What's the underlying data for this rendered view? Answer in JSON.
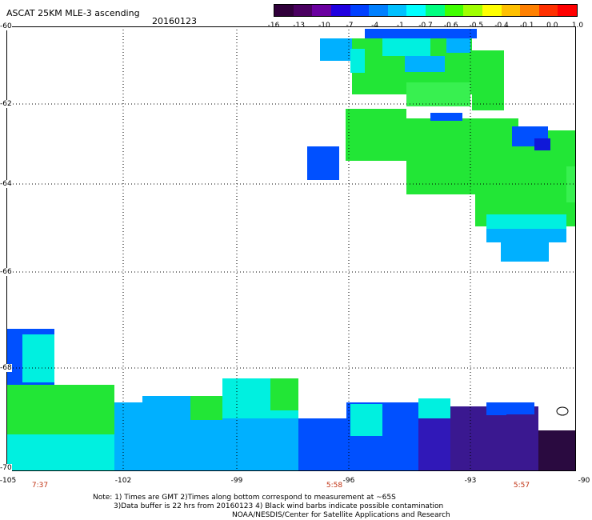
{
  "header": {
    "title": "ASCAT 25KM MLE-3 ascending",
    "date": "20160123"
  },
  "colorbar": {
    "colors": [
      "#30003a",
      "#4a0060",
      "#6a00a0",
      "#2000e0",
      "#0040ff",
      "#0080ff",
      "#00c0ff",
      "#00ffff",
      "#00ff80",
      "#40ff00",
      "#a0ff00",
      "#ffff00",
      "#ffc000",
      "#ff8000",
      "#ff3000",
      "#ff0000"
    ],
    "labels": [
      "-16",
      "-13",
      "-10",
      "-7",
      "-4",
      "-1",
      "-0.7",
      "-0.6",
      "-0.5",
      "-0.4",
      "-0.1",
      "0.0",
      "1.0"
    ]
  },
  "axes": {
    "lat_labels": [
      "-60",
      "-62",
      "-64",
      "-66",
      "-68",
      "-70"
    ],
    "lon_labels": [
      "-105",
      "-102",
      "-99",
      "-96",
      "-93",
      "-90"
    ],
    "time_labels": [
      "7:37",
      "5:58",
      "5:57"
    ]
  },
  "notes": {
    "line1": "Note: 1) Times are GMT 2)Times along bottom correspond to measurement at ~65S",
    "line2": "3)Data buffer is 22 hrs from 20160123 4) Black wind barbs indicate possible contamination",
    "line3": "NOAA/NESDIS/Center for Satellite Applications and Research"
  },
  "map": {
    "colors": {
      "green": "#22e636",
      "lime": "#38f050",
      "cyan": "#00f0e0",
      "lightblue": "#00b0ff",
      "blue": "#0050ff",
      "darkblue": "#1018d8",
      "indigo": "#3018b8",
      "purple": "#3a1890",
      "dark": "#2a0a40"
    }
  }
}
